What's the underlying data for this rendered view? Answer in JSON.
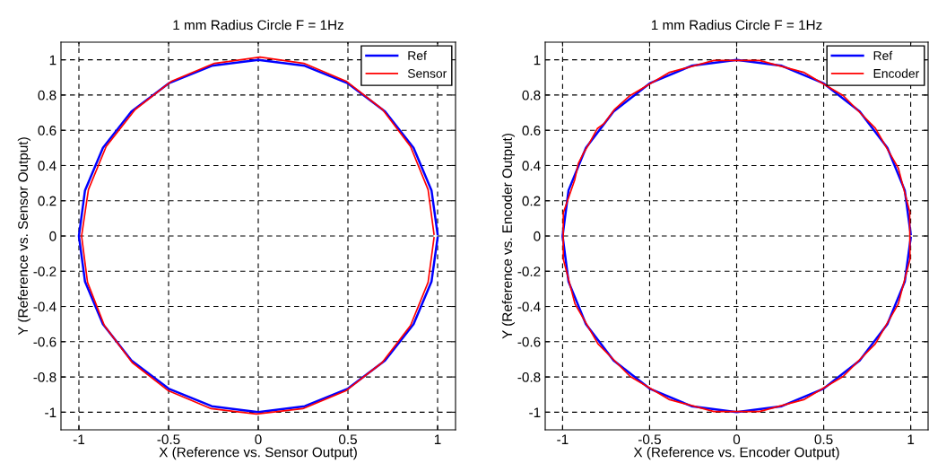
{
  "chart_data": [
    {
      "type": "line",
      "title": "1 mm Radius Circle F = 1Hz",
      "xlabel": "X (Reference vs. Sensor Output)",
      "ylabel": "Y (Reference vs. Sensor Output)",
      "xlim": [
        -1.1,
        1.1
      ],
      "ylim": [
        -1.1,
        1.1
      ],
      "xticks": [
        -1,
        -0.5,
        0,
        0.5,
        1
      ],
      "yticks": [
        -1,
        -0.8,
        -0.6,
        -0.4,
        -0.2,
        0,
        0.2,
        0.4,
        0.6,
        0.8,
        1
      ],
      "grid": true,
      "legend": "top right",
      "marker": "none",
      "line_style": "solid",
      "series": [
        {
          "name": "Ref",
          "color": "#0000ff",
          "x": [
            1,
            0.966,
            0.866,
            0.707,
            0.5,
            0.259,
            0,
            -0.259,
            -0.5,
            -0.707,
            -0.866,
            -0.966,
            -1,
            -0.966,
            -0.866,
            -0.707,
            -0.5,
            -0.259,
            0,
            0.259,
            0.5,
            0.707,
            0.866,
            0.966,
            1
          ],
          "values": [
            0.01,
            0.259,
            0.5,
            0.707,
            0.866,
            0.966,
            1,
            0.966,
            0.866,
            0.707,
            0.5,
            0.259,
            0,
            -0.259,
            -0.5,
            -0.707,
            -0.866,
            -0.966,
            -1,
            -0.966,
            -0.866,
            -0.707,
            -0.5,
            -0.259,
            -0.01
          ]
        },
        {
          "name": "Sensor",
          "color": "#ff0000",
          "x": [
            0.98,
            0.947,
            0.849,
            0.693,
            0.49,
            0.254,
            0.01,
            -0.244,
            -0.483,
            -0.686,
            -0.848,
            -0.947,
            -0.985,
            -0.952,
            -0.858,
            -0.703,
            -0.5,
            -0.262,
            -0.01,
            0.248,
            0.488,
            0.691,
            0.849,
            0.947,
            0.98
          ],
          "values": [
            0.01,
            0.263,
            0.508,
            0.718,
            0.879,
            0.98,
            1.015,
            0.98,
            0.879,
            0.718,
            0.508,
            0.263,
            0,
            -0.263,
            -0.508,
            -0.718,
            -0.879,
            -0.98,
            -1.01,
            -0.98,
            -0.879,
            -0.718,
            -0.508,
            -0.263,
            -0.01
          ]
        }
      ]
    },
    {
      "type": "line",
      "title": "1 mm Radius Circle F = 1Hz",
      "xlabel": "X (Reference vs. Encoder Output)",
      "ylabel": "Y (Reference vs. Encoder Output)",
      "xlim": [
        -1.1,
        1.1
      ],
      "ylim": [
        -1.1,
        1.1
      ],
      "xticks": [
        -1,
        -0.5,
        0,
        0.5,
        1
      ],
      "yticks": [
        -1,
        -0.8,
        -0.6,
        -0.4,
        -0.2,
        0,
        0.2,
        0.4,
        0.6,
        0.8,
        1
      ],
      "grid": true,
      "legend": "top right",
      "marker": "none",
      "line_style": "solid",
      "series": [
        {
          "name": "Ref",
          "color": "#0000ff",
          "x": [
            1,
            0.966,
            0.866,
            0.707,
            0.5,
            0.259,
            0,
            -0.259,
            -0.5,
            -0.707,
            -0.866,
            -0.966,
            -1,
            -0.966,
            -0.866,
            -0.707,
            -0.5,
            -0.259,
            0,
            0.259,
            0.5,
            0.707,
            0.866,
            0.966,
            1
          ],
          "values": [
            0.01,
            0.259,
            0.5,
            0.707,
            0.866,
            0.966,
            1,
            0.966,
            0.866,
            0.707,
            0.5,
            0.259,
            0,
            -0.259,
            -0.5,
            -0.707,
            -0.866,
            -0.966,
            -1,
            -0.966,
            -0.866,
            -0.707,
            -0.5,
            -0.259,
            -0.01
          ]
        },
        {
          "name": "Encoder",
          "color": "#ff0000",
          "x": [
            0.996,
            0.929,
            0.797,
            0.612,
            0.385,
            0.131,
            -0.131,
            -0.385,
            -0.612,
            -0.7,
            -0.76,
            -0.8,
            -0.85,
            -0.88,
            -0.91,
            -0.93,
            -0.996,
            -0.996,
            -0.929,
            -0.797,
            -0.612,
            -0.385,
            -0.131,
            0.131,
            0.385,
            0.612,
            0.797,
            0.929,
            0.996,
            0.994
          ],
          "values": [
            0.131,
            0.385,
            0.612,
            0.797,
            0.929,
            0.996,
            0.996,
            0.929,
            0.797,
            0.72,
            0.64,
            0.61,
            0.52,
            0.47,
            0.41,
            0.32,
            0.131,
            -0.131,
            -0.385,
            -0.612,
            -0.797,
            -0.929,
            -0.996,
            -0.996,
            -0.929,
            -0.797,
            -0.612,
            -0.385,
            -0.131,
            0.128
          ]
        }
      ]
    }
  ]
}
